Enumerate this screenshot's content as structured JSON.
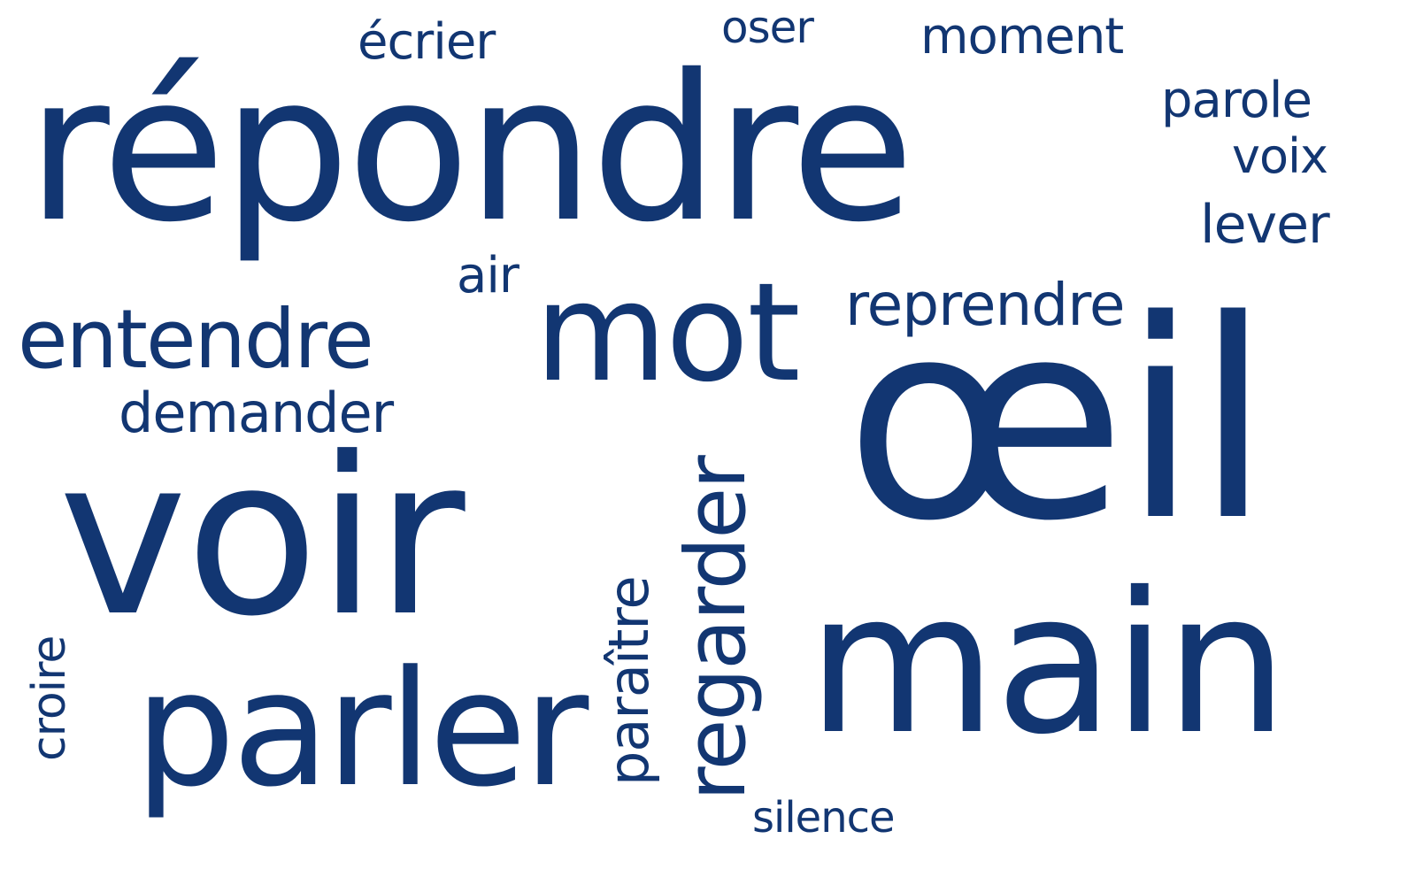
{
  "theme": {
    "word_color": "#123672",
    "background": "#ffffff"
  },
  "words": [
    {
      "text": "répondre"
    },
    {
      "text": "voir"
    },
    {
      "text": "œil"
    },
    {
      "text": "main"
    },
    {
      "text": "mot"
    },
    {
      "text": "parler"
    },
    {
      "text": "regarder"
    },
    {
      "text": "entendre"
    },
    {
      "text": "reprendre"
    },
    {
      "text": "demander"
    },
    {
      "text": "paraître"
    },
    {
      "text": "croire"
    },
    {
      "text": "parole"
    },
    {
      "text": "voix"
    },
    {
      "text": "lever"
    },
    {
      "text": "moment"
    },
    {
      "text": "oser"
    },
    {
      "text": "écrier"
    },
    {
      "text": "air"
    },
    {
      "text": "silence"
    }
  ]
}
